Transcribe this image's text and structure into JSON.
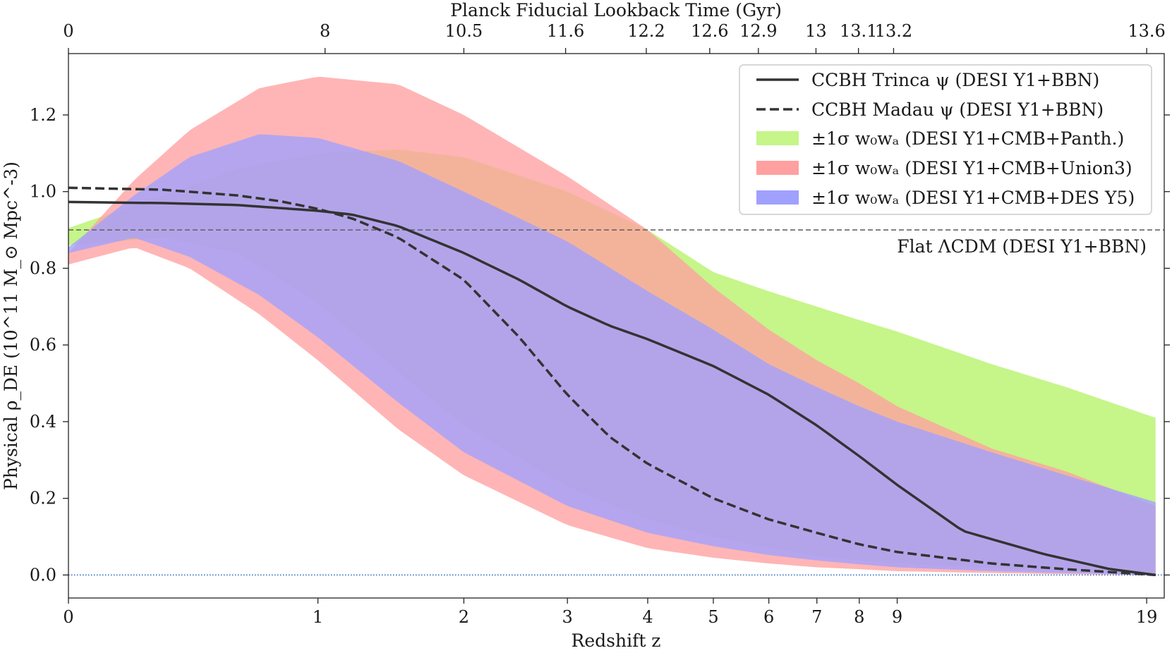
{
  "chart_data": {
    "type": "area",
    "title": "",
    "xlabel": "Redshift z",
    "ylabel": "Physical ρ_DE (10^11 M_⊙ Mpc^-3)",
    "top_xlabel": "Planck Fiducial Lookback Time (Gyr)",
    "xscale": "log(1+z)",
    "xlim": [
      0,
      20
    ],
    "ylim": [
      -0.06,
      1.36
    ],
    "x_ticks": [
      0,
      1,
      2,
      3,
      4,
      5,
      6,
      7,
      8,
      9,
      19
    ],
    "x_tick_labels": [
      "0",
      "1",
      "2",
      "3",
      "4",
      "5",
      "6",
      "7",
      "8",
      "9",
      "19"
    ],
    "top_ticks": [
      {
        "z": 0,
        "label": "0"
      },
      {
        "z": 1.04,
        "label": "8"
      },
      {
        "z": 2.0,
        "label": "10.5"
      },
      {
        "z": 2.98,
        "label": "11.6"
      },
      {
        "z": 3.98,
        "label": "12.2"
      },
      {
        "z": 4.94,
        "label": "12.6"
      },
      {
        "z": 5.8,
        "label": "12.9"
      },
      {
        "z": 6.98,
        "label": "13"
      },
      {
        "z": 7.98,
        "label": "13.1"
      },
      {
        "z": 8.9,
        "label": "13.2"
      },
      {
        "z": 19,
        "label": "13.6"
      }
    ],
    "y_ticks": [
      0.0,
      0.2,
      0.4,
      0.6,
      0.8,
      1.0,
      1.2
    ],
    "y_tick_labels": [
      "0.0",
      "0.2",
      "0.4",
      "0.6",
      "0.8",
      "1.0",
      "1.2"
    ],
    "reference_lines": [
      {
        "name": "Flat ΛCDM (DESI Y1+BBN)",
        "y": 0.9,
        "style": "dashed",
        "color": "#666666",
        "label": "Flat ΛCDM (DESI Y1+BBN)"
      },
      {
        "name": "zero",
        "y": 0.0,
        "style": "dotted",
        "color": "#1f5fbf"
      }
    ],
    "bands": [
      {
        "name": "±1σ w0wa (DESI Y1+CMB+Panth.)",
        "color": "#c6f58a",
        "x": [
          0,
          0.3,
          0.6,
          1,
          1.5,
          2,
          3,
          4,
          5,
          6,
          7,
          8,
          9,
          12,
          15,
          19.5
        ],
        "upper": [
          0.905,
          0.99,
          1.06,
          1.1,
          1.11,
          1.09,
          1.0,
          0.9,
          0.79,
          0.74,
          0.7,
          0.665,
          0.635,
          0.55,
          0.49,
          0.41
        ],
        "lower": [
          0.86,
          0.88,
          0.84,
          0.71,
          0.53,
          0.39,
          0.23,
          0.145,
          0.1,
          0.07,
          0.05,
          0.038,
          0.03,
          0.018,
          0.012,
          0.005
        ]
      },
      {
        "name": "±1σ w0wa (DESI Y1+CMB+Union3)",
        "color": "#ffa0a0",
        "x": [
          0,
          0.2,
          0.4,
          0.7,
          1,
          1.5,
          2,
          3,
          4,
          5,
          6,
          7,
          8,
          9,
          12,
          15,
          19.5
        ],
        "upper": [
          0.84,
          1.03,
          1.16,
          1.27,
          1.3,
          1.28,
          1.2,
          1.04,
          0.9,
          0.75,
          0.64,
          0.56,
          0.5,
          0.44,
          0.33,
          0.27,
          0.18
        ],
        "lower": [
          0.81,
          0.855,
          0.8,
          0.68,
          0.56,
          0.38,
          0.26,
          0.13,
          0.07,
          0.045,
          0.03,
          0.02,
          0.015,
          0.01,
          0.005,
          0.002,
          0.0
        ]
      },
      {
        "name": "±1σ w0wa (DESI Y1+CMB+DES Y5)",
        "color": "#a0a0ff",
        "x": [
          0,
          0.2,
          0.4,
          0.7,
          1,
          1.5,
          2,
          3,
          4,
          5,
          6,
          7,
          8,
          9,
          12,
          15,
          19.5
        ],
        "upper": [
          0.855,
          0.99,
          1.09,
          1.15,
          1.14,
          1.08,
          1.0,
          0.87,
          0.74,
          0.64,
          0.55,
          0.49,
          0.44,
          0.4,
          0.32,
          0.26,
          0.19
        ],
        "lower": [
          0.84,
          0.88,
          0.83,
          0.73,
          0.62,
          0.45,
          0.32,
          0.18,
          0.11,
          0.075,
          0.052,
          0.038,
          0.028,
          0.02,
          0.01,
          0.005,
          0.0
        ]
      }
    ],
    "series": [
      {
        "name": "CCBH Trinca ψ (DESI Y1+BBN)",
        "style": "solid",
        "color": "#333333",
        "x": [
          0,
          0.3,
          0.6,
          1,
          1.2,
          1.5,
          2,
          2.5,
          3,
          3.5,
          4,
          5,
          6,
          7,
          8,
          9,
          11,
          14,
          17,
          19.5
        ],
        "y": [
          0.973,
          0.97,
          0.965,
          0.95,
          0.94,
          0.91,
          0.84,
          0.77,
          0.7,
          0.65,
          0.615,
          0.545,
          0.47,
          0.39,
          0.31,
          0.235,
          0.115,
          0.055,
          0.016,
          0.0
        ]
      },
      {
        "name": "CCBH Madau ψ (DESI Y1+BBN)",
        "style": "dashed",
        "color": "#333333",
        "x": [
          0,
          0.3,
          0.6,
          0.8,
          1,
          1.2,
          1.5,
          2,
          2.5,
          3,
          3.5,
          4,
          5,
          6,
          7,
          8,
          9,
          12,
          15,
          19.5
        ],
        "y": [
          1.01,
          1.005,
          0.99,
          0.975,
          0.955,
          0.93,
          0.88,
          0.77,
          0.62,
          0.47,
          0.36,
          0.29,
          0.2,
          0.145,
          0.11,
          0.08,
          0.06,
          0.03,
          0.015,
          0.0
        ]
      }
    ],
    "legend_position": "top-right",
    "legend": [
      {
        "label": "CCBH Trinca ψ (DESI Y1+BBN)",
        "kind": "line-solid"
      },
      {
        "label": "CCBH Madau ψ (DESI Y1+BBN)",
        "kind": "line-dashed"
      },
      {
        "label": "±1σ w₀wₐ (DESI Y1+CMB+Panth.)",
        "kind": "patch",
        "color": "#c6f58a"
      },
      {
        "label": "±1σ w₀wₐ (DESI Y1+CMB+Union3)",
        "kind": "patch",
        "color": "#ffa0a0"
      },
      {
        "label": "±1σ w₀wₐ (DESI Y1+CMB+DES Y5)",
        "kind": "patch",
        "color": "#a0a0ff"
      }
    ]
  }
}
